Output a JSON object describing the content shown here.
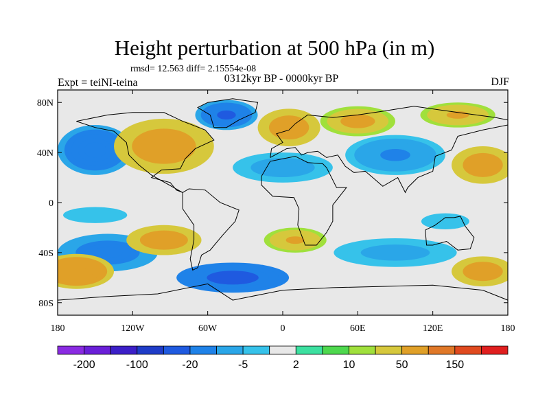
{
  "title": "Height perturbation at 500 hPa (in m)",
  "stats": "rmsd= 12.563 diff= 2.15554e-08",
  "left_label": "Expt = teiNI-teina",
  "center_label": "0312kyr BP - 0000kyr BP",
  "right_label": "DJF",
  "map": {
    "lon_range": [
      -180,
      180
    ],
    "lat_range": [
      -90,
      90
    ],
    "lat_ticks": [
      {
        "lat": 80,
        "label": "80N"
      },
      {
        "lat": 40,
        "label": "40N"
      },
      {
        "lat": 0,
        "label": "0"
      },
      {
        "lat": -40,
        "label": "40S"
      },
      {
        "lat": -80,
        "label": "80S"
      }
    ],
    "lon_ticks": [
      {
        "lon": -180,
        "label": "180"
      },
      {
        "lon": -120,
        "label": "120W"
      },
      {
        "lon": -60,
        "label": "60W"
      },
      {
        "lon": 0,
        "label": "0"
      },
      {
        "lon": 60,
        "label": "60E"
      },
      {
        "lon": 120,
        "label": "120E"
      },
      {
        "lon": 180,
        "label": "180"
      }
    ],
    "background_level_color": "#e8e8e8",
    "anomaly_blobs": [
      {
        "lon": -150,
        "lat": 42,
        "rlon": 30,
        "rlat": 20,
        "value": -40
      },
      {
        "lon": -95,
        "lat": 45,
        "rlon": 40,
        "rlat": 22,
        "value": 35
      },
      {
        "lon": -45,
        "lat": 70,
        "rlon": 25,
        "rlat": 12,
        "value": -50
      },
      {
        "lon": 5,
        "lat": 60,
        "rlon": 25,
        "rlat": 15,
        "value": 30
      },
      {
        "lon": 0,
        "lat": 28,
        "rlon": 40,
        "rlat": 12,
        "value": -15
      },
      {
        "lon": 90,
        "lat": 38,
        "rlon": 40,
        "rlat": 16,
        "value": -20
      },
      {
        "lon": 160,
        "lat": 30,
        "rlon": 25,
        "rlat": 15,
        "value": 30
      },
      {
        "lon": 60,
        "lat": 65,
        "rlon": 30,
        "rlat": 12,
        "value": 25
      },
      {
        "lon": 140,
        "lat": 70,
        "rlon": 30,
        "rlat": 10,
        "value": 20
      },
      {
        "lon": -150,
        "lat": -10,
        "rlon": 40,
        "rlat": 10,
        "value": -8
      },
      {
        "lon": -140,
        "lat": -40,
        "rlon": 40,
        "rlat": 15,
        "value": -30
      },
      {
        "lon": -95,
        "lat": -30,
        "rlon": 30,
        "rlat": 12,
        "value": 30
      },
      {
        "lon": -165,
        "lat": -55,
        "rlon": 30,
        "rlat": 14,
        "value": 40
      },
      {
        "lon": -40,
        "lat": -60,
        "rlon": 45,
        "rlat": 12,
        "value": -60
      },
      {
        "lon": 10,
        "lat": -30,
        "rlon": 25,
        "rlat": 10,
        "value": 20
      },
      {
        "lon": 90,
        "lat": -40,
        "rlon": 60,
        "rlat": 14,
        "value": -12
      },
      {
        "lon": 160,
        "lat": -55,
        "rlon": 25,
        "rlat": 12,
        "value": 30
      },
      {
        "lon": 130,
        "lat": -15,
        "rlon": 30,
        "rlat": 10,
        "value": -8
      }
    ]
  },
  "colorbar": {
    "colors": [
      "#8a2be2",
      "#6a1fd8",
      "#3c1fc8",
      "#1f3cc8",
      "#1f5ae0",
      "#1f82e8",
      "#2aa6e8",
      "#36c2ea",
      "#e8e8e8",
      "#3ce0a0",
      "#4ed84e",
      "#a0e03c",
      "#d6c83c",
      "#e0a028",
      "#e07828",
      "#e04a1f",
      "#e01f1f"
    ],
    "labels": [
      "-200",
      "-100",
      "-20",
      "-5",
      "2",
      "10",
      "50",
      "150"
    ],
    "levels": [
      -250,
      -200,
      -150,
      -100,
      -50,
      -20,
      -10,
      -5,
      -2,
      2,
      5,
      10,
      20,
      50,
      100,
      150,
      200
    ]
  }
}
